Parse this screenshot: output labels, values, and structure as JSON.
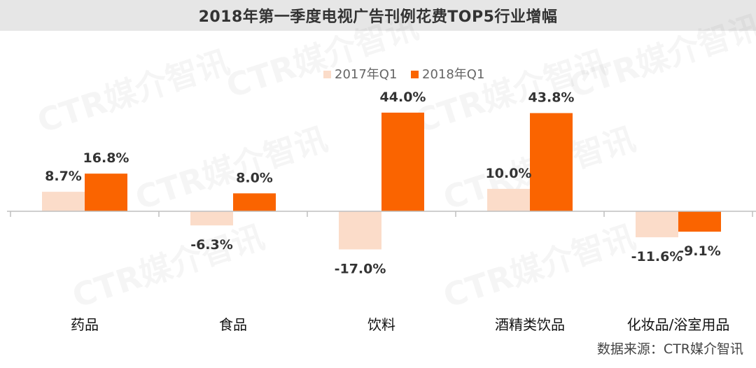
{
  "title": "2018年第一季度电视广告刊例花费TOP5行业增幅",
  "source": "数据来源：CTR媒介智讯",
  "watermark": "CTR媒介智讯",
  "colors": {
    "series_2017": "#fbdcc9",
    "series_2018": "#fa6400",
    "axis": "#bfbfbf",
    "title_bar": "#e6e6e6"
  },
  "chart_data": {
    "type": "bar",
    "title": "2018年第一季度电视广告刊例花费TOP5行业增幅",
    "categories": [
      "药品",
      "食品",
      "饮料",
      "酒精类饮品",
      "化妆品/浴室用品"
    ],
    "series": [
      {
        "name": "2017年Q1",
        "values": [
          8.7,
          -6.3,
          -17.0,
          10.0,
          -11.6
        ],
        "labels": [
          "8.7%",
          "-6.3%",
          "-17.0%",
          "10.0%",
          "-11.6%"
        ]
      },
      {
        "name": "2018年Q1",
        "values": [
          16.8,
          8.0,
          44.0,
          43.8,
          -9.1
        ],
        "labels": [
          "16.8%",
          "8.0%",
          "44.0%",
          "43.8%",
          "-9.1%"
        ]
      }
    ],
    "ylim": [
      -17.0,
      44.0
    ],
    "unit": "%",
    "legend_position": "top-center",
    "grid": false
  }
}
